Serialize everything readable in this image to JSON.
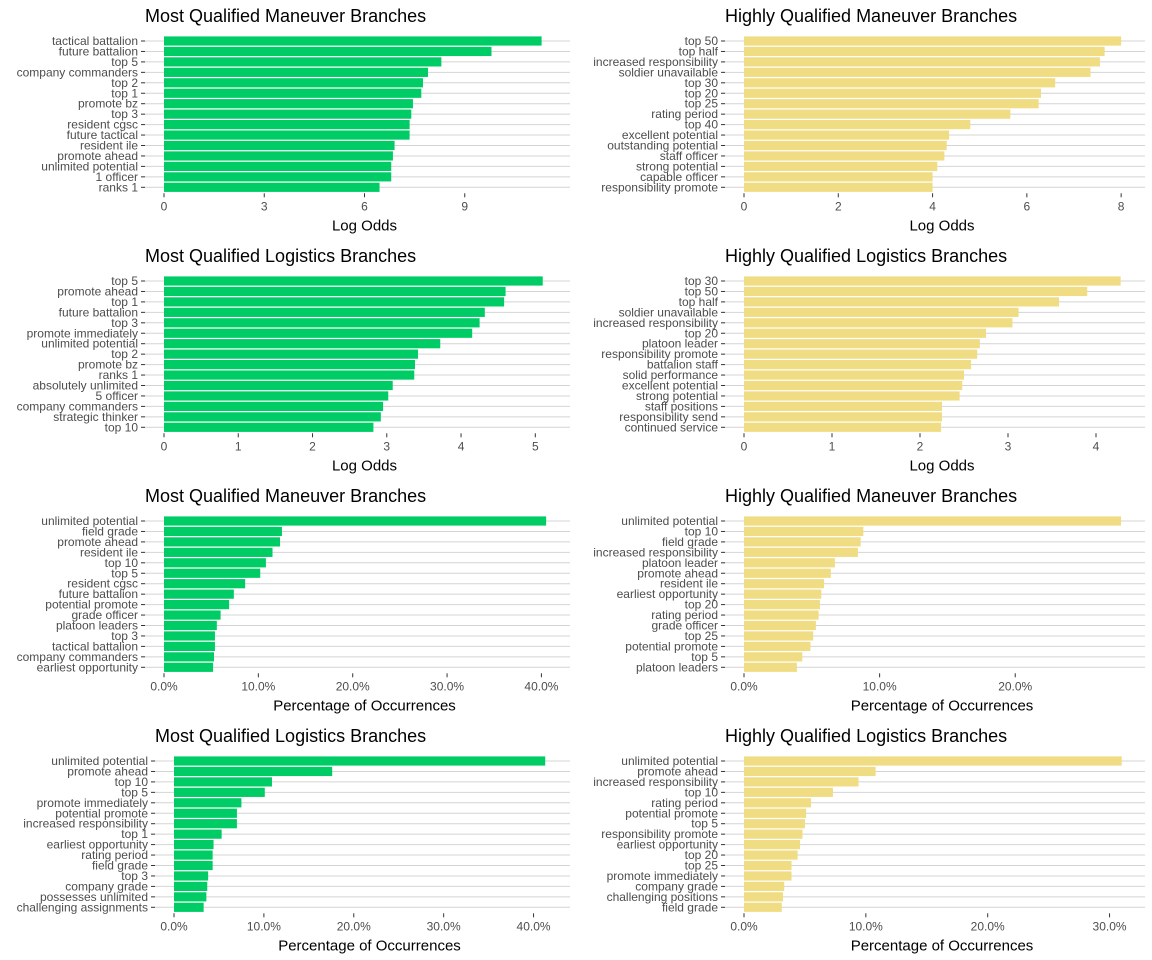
{
  "chart_data": [
    {
      "type": "bar",
      "orientation": "horizontal",
      "title": "Most Qualified Maneuver Branches",
      "xlabel": "Log Odds",
      "xlim": [
        0,
        12
      ],
      "xticks": [
        0,
        3,
        6,
        9
      ],
      "xtick_labels": [
        "0",
        "3",
        "6",
        "9"
      ],
      "categories": [
        "tactical battalion",
        "future battalion",
        "top 5",
        "company commanders",
        "top 2",
        "top 1",
        "promote bz",
        "top 3",
        "resident cgsc",
        "future tactical",
        "resident ile",
        "promote ahead",
        "unlimited potential",
        "1 officer",
        "ranks 1"
      ],
      "values": [
        11.3,
        9.8,
        8.3,
        7.9,
        7.75,
        7.7,
        7.45,
        7.4,
        7.35,
        7.35,
        6.9,
        6.85,
        6.8,
        6.8,
        6.45
      ],
      "color": "#00cc66"
    },
    {
      "type": "bar",
      "orientation": "horizontal",
      "title": "Highly Qualified Maneuver Branches",
      "xlabel": "Log Odds",
      "xlim": [
        0,
        8.4
      ],
      "xticks": [
        0,
        2,
        4,
        6,
        8
      ],
      "xtick_labels": [
        "0",
        "2",
        "4",
        "6",
        "8"
      ],
      "categories": [
        "top 50",
        "top half",
        "increased responsibility",
        "soldier unavailable",
        "top 30",
        "top 20",
        "top 25",
        "rating period",
        "top 40",
        "excellent potential",
        "outstanding potential",
        "staff officer",
        "strong potential",
        "capable officer",
        "responsibility promote"
      ],
      "values": [
        8.0,
        7.65,
        7.55,
        7.35,
        6.6,
        6.3,
        6.25,
        5.65,
        4.8,
        4.35,
        4.3,
        4.25,
        4.1,
        4.0,
        4.0
      ],
      "color": "#f0dc82"
    },
    {
      "type": "bar",
      "orientation": "horizontal",
      "title": "Most Qualified Logistics Branches",
      "xlabel": "Log Odds",
      "xlim": [
        0,
        5.4
      ],
      "xticks": [
        0,
        1,
        2,
        3,
        4,
        5
      ],
      "xtick_labels": [
        "0",
        "1",
        "2",
        "3",
        "4",
        "5"
      ],
      "categories": [
        "top 5",
        "promote ahead",
        "top 1",
        "future battalion",
        "top 3",
        "promote immediately",
        "unlimited potential",
        "top 2",
        "promote bz",
        "ranks 1",
        "absolutely unlimited",
        "5 officer",
        "company commanders",
        "strategic thinker",
        "top 10"
      ],
      "values": [
        5.1,
        4.6,
        4.58,
        4.32,
        4.25,
        4.15,
        3.72,
        3.42,
        3.38,
        3.37,
        3.08,
        3.02,
        2.95,
        2.92,
        2.82
      ],
      "color": "#00cc66"
    },
    {
      "type": "bar",
      "orientation": "horizontal",
      "title": "Highly Qualified Logistics Branches",
      "xlabel": "Log Odds",
      "xlim": [
        0,
        4.5
      ],
      "xticks": [
        0,
        1,
        2,
        3,
        4
      ],
      "xtick_labels": [
        "0",
        "1",
        "2",
        "3",
        "4"
      ],
      "categories": [
        "top 30",
        "top 50",
        "top half",
        "soldier unavailable",
        "increased responsibility",
        "top 20",
        "platoon leader",
        "responsibility promote",
        "battalion staff",
        "solid performance",
        "excellent potential",
        "strong potential",
        "staff positions",
        "responsibility send",
        "continued service"
      ],
      "values": [
        4.28,
        3.9,
        3.58,
        3.12,
        3.05,
        2.75,
        2.68,
        2.65,
        2.58,
        2.5,
        2.48,
        2.45,
        2.25,
        2.25,
        2.24
      ],
      "color": "#f0dc82"
    },
    {
      "type": "bar",
      "orientation": "horizontal",
      "title": "Most Qualified Maneuver Branches",
      "xlabel": "Percentage of Occurrences",
      "xlim": [
        0,
        42.5
      ],
      "xticks": [
        0,
        10,
        20,
        30,
        40
      ],
      "xtick_labels": [
        "0.0%",
        "10.0%",
        "20.0%",
        "30.0%",
        "40.0%"
      ],
      "categories": [
        "unlimited potential",
        "field grade",
        "promote ahead",
        "resident ile",
        "top 10",
        "top 5",
        "resident cgsc",
        "future battalion",
        "potential promote",
        "grade officer",
        "platoon leaders",
        "top 3",
        "tactical battalion",
        "company commanders",
        "earliest opportunity"
      ],
      "values": [
        40.5,
        12.5,
        12.3,
        11.5,
        10.8,
        10.2,
        8.6,
        7.4,
        6.9,
        6.0,
        5.6,
        5.4,
        5.4,
        5.3,
        5.2
      ],
      "color": "#00cc66"
    },
    {
      "type": "bar",
      "orientation": "horizontal",
      "title": "Highly Qualified Maneuver Branches",
      "xlabel": "Percentage of Occurrences",
      "xlim": [
        0,
        29.2
      ],
      "xticks": [
        0,
        10,
        20
      ],
      "xtick_labels": [
        "0.0%",
        "10.0%",
        "20.0%"
      ],
      "categories": [
        "unlimited potential",
        "top 10",
        "field grade",
        "increased responsibility",
        "platoon leader",
        "promote ahead",
        "resident ile",
        "earliest opportunity",
        "top 20",
        "rating period",
        "grade officer",
        "top 25",
        "potential promote",
        "top 5",
        "platoon leaders"
      ],
      "values": [
        27.8,
        8.8,
        8.6,
        8.4,
        6.7,
        6.4,
        5.9,
        5.7,
        5.6,
        5.5,
        5.3,
        5.1,
        4.9,
        4.3,
        3.9
      ],
      "color": "#f0dc82"
    },
    {
      "type": "bar",
      "orientation": "horizontal",
      "title": "Most Qualified Logistics Branches",
      "xlabel": "Percentage of Occurrences",
      "xlim": [
        0,
        43.5
      ],
      "xticks": [
        0,
        10,
        20,
        30,
        40
      ],
      "xtick_labels": [
        "0.0%",
        "10.0%",
        "20.0%",
        "30.0%",
        "40.0%"
      ],
      "categories": [
        "unlimited potential",
        "promote ahead",
        "top 10",
        "top 5",
        "promote immediately",
        "potential promote",
        "increased responsibility",
        "top 1",
        "earliest opportunity",
        "rating period",
        "field grade",
        "top 3",
        "company grade",
        "possesses unlimited",
        "challenging assignments"
      ],
      "values": [
        41.3,
        17.6,
        10.9,
        10.1,
        7.5,
        7.0,
        7.0,
        5.3,
        4.4,
        4.3,
        4.3,
        3.8,
        3.7,
        3.6,
        3.3
      ],
      "color": "#00cc66"
    },
    {
      "type": "bar",
      "orientation": "horizontal",
      "title": "Highly Qualified Logistics Branches",
      "xlabel": "Percentage of Occurrences",
      "xlim": [
        0,
        32.5
      ],
      "xticks": [
        0,
        10,
        20,
        30
      ],
      "xtick_labels": [
        "0.0%",
        "10.0%",
        "20.0%",
        "30.0%"
      ],
      "categories": [
        "unlimited potential",
        "promote ahead",
        "increased responsibility",
        "top 10",
        "rating period",
        "potential promote",
        "top 5",
        "responsibility promote",
        "earliest opportunity",
        "top 20",
        "top 25",
        "promote immediately",
        "company grade",
        "challenging positions",
        "field grade"
      ],
      "values": [
        31.0,
        10.8,
        9.4,
        7.3,
        5.5,
        5.1,
        5.0,
        4.8,
        4.6,
        4.4,
        3.9,
        3.9,
        3.3,
        3.2,
        3.1
      ],
      "color": "#f0dc82"
    }
  ]
}
